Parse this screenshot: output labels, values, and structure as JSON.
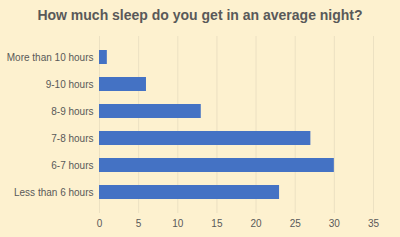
{
  "chart_data": {
    "type": "bar",
    "title": "How much sleep do you get in an average night?",
    "orientation": "horizontal",
    "categories": [
      "More than 10 hours",
      "9-10 hours",
      "8-9 hours",
      "7-8 hours",
      "6-7 hours",
      "Less than 6 hours"
    ],
    "values": [
      1,
      6,
      13,
      27,
      30,
      23
    ],
    "color": "#4472c4",
    "xlim": [
      0,
      35
    ],
    "xticks": [
      0,
      5,
      10,
      15,
      20,
      25,
      30,
      35
    ],
    "grid": true
  }
}
